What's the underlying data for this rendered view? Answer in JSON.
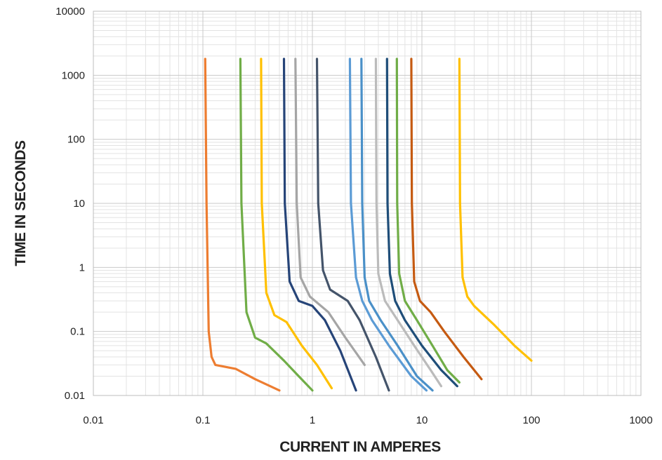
{
  "chart_data": {
    "type": "line",
    "title": "",
    "xlabel": "CURRENT IN AMPERES",
    "ylabel": "TIME IN SECONDS",
    "x_scale": "log",
    "y_scale": "log",
    "xlim": [
      0.01,
      1000
    ],
    "ylim": [
      0.01,
      10000
    ],
    "x_ticks": [
      0.01,
      0.1,
      1,
      10,
      100,
      1000
    ],
    "x_tick_labels": [
      "0.01",
      "0.1",
      "1",
      "10",
      "100",
      "1000"
    ],
    "y_ticks": [
      0.01,
      0.1,
      1,
      10,
      100,
      1000,
      10000
    ],
    "y_tick_labels": [
      "0.01",
      "0.1",
      "1",
      "10",
      "100",
      "1000",
      "10000"
    ],
    "grid": true,
    "legend": "none",
    "series": [
      {
        "color": "#ED7D31",
        "points": [
          [
            0.105,
            1800
          ],
          [
            0.108,
            10
          ],
          [
            0.113,
            0.1
          ],
          [
            0.12,
            0.04
          ],
          [
            0.13,
            0.03
          ],
          [
            0.2,
            0.026
          ],
          [
            0.3,
            0.018
          ],
          [
            0.5,
            0.012
          ]
        ]
      },
      {
        "color": "#70AD47",
        "points": [
          [
            0.22,
            1800
          ],
          [
            0.225,
            10
          ],
          [
            0.25,
            0.2
          ],
          [
            0.3,
            0.08
          ],
          [
            0.38,
            0.065
          ],
          [
            0.55,
            0.035
          ],
          [
            0.75,
            0.02
          ],
          [
            1.0,
            0.012
          ]
        ]
      },
      {
        "color": "#FFC000",
        "points": [
          [
            0.34,
            1800
          ],
          [
            0.345,
            10
          ],
          [
            0.38,
            0.4
          ],
          [
            0.45,
            0.18
          ],
          [
            0.58,
            0.14
          ],
          [
            0.8,
            0.06
          ],
          [
            1.1,
            0.03
          ],
          [
            1.5,
            0.013
          ]
        ]
      },
      {
        "color": "#264478",
        "points": [
          [
            0.55,
            1800
          ],
          [
            0.56,
            10
          ],
          [
            0.62,
            0.6
          ],
          [
            0.75,
            0.3
          ],
          [
            1.0,
            0.25
          ],
          [
            1.3,
            0.15
          ],
          [
            1.8,
            0.05
          ],
          [
            2.5,
            0.012
          ]
        ]
      },
      {
        "color": "#A5A5A5",
        "points": [
          [
            0.7,
            1800
          ],
          [
            0.72,
            10
          ],
          [
            0.78,
            0.7
          ],
          [
            0.95,
            0.35
          ],
          [
            1.4,
            0.2
          ],
          [
            2.0,
            0.08
          ],
          [
            3.0,
            0.03
          ]
        ]
      },
      {
        "color": "#44546A",
        "points": [
          [
            1.1,
            1800
          ],
          [
            1.13,
            10
          ],
          [
            1.25,
            0.9
          ],
          [
            1.45,
            0.45
          ],
          [
            2.1,
            0.3
          ],
          [
            2.7,
            0.15
          ],
          [
            3.8,
            0.04
          ],
          [
            5.0,
            0.012
          ]
        ]
      },
      {
        "color": "#5B9BD5",
        "points": [
          [
            2.2,
            1800
          ],
          [
            2.25,
            10
          ],
          [
            2.5,
            0.7
          ],
          [
            2.85,
            0.3
          ],
          [
            3.5,
            0.15
          ],
          [
            5.0,
            0.06
          ],
          [
            8.0,
            0.02
          ],
          [
            11.0,
            0.012
          ]
        ]
      },
      {
        "color": "#4A90C8",
        "points": [
          [
            2.8,
            1800
          ],
          [
            2.85,
            10
          ],
          [
            3.0,
            0.7
          ],
          [
            3.3,
            0.3
          ],
          [
            4.2,
            0.15
          ],
          [
            6.0,
            0.06
          ],
          [
            9.0,
            0.02
          ],
          [
            12.5,
            0.012
          ]
        ]
      },
      {
        "color": "#BBBBBB",
        "points": [
          [
            3.8,
            1800
          ],
          [
            3.85,
            10
          ],
          [
            4.0,
            0.8
          ],
          [
            4.6,
            0.3
          ],
          [
            6.0,
            0.15
          ],
          [
            8.5,
            0.06
          ],
          [
            12.0,
            0.025
          ],
          [
            15.0,
            0.014
          ]
        ]
      },
      {
        "color": "#1F4E79",
        "points": [
          [
            4.8,
            1800
          ],
          [
            4.85,
            10
          ],
          [
            5.1,
            0.8
          ],
          [
            5.7,
            0.3
          ],
          [
            7.0,
            0.15
          ],
          [
            10.0,
            0.06
          ],
          [
            15.0,
            0.025
          ],
          [
            21.0,
            0.014
          ]
        ]
      },
      {
        "color": "#70AD47",
        "points": [
          [
            5.9,
            1800
          ],
          [
            5.95,
            10
          ],
          [
            6.2,
            0.8
          ],
          [
            7.0,
            0.3
          ],
          [
            9.0,
            0.15
          ],
          [
            12.5,
            0.06
          ],
          [
            17.0,
            0.025
          ],
          [
            22.0,
            0.016
          ]
        ]
      },
      {
        "color": "#C55A11",
        "points": [
          [
            8.0,
            1800
          ],
          [
            8.1,
            10
          ],
          [
            8.5,
            0.6
          ],
          [
            9.6,
            0.3
          ],
          [
            12.0,
            0.2
          ],
          [
            16.0,
            0.1
          ],
          [
            24.0,
            0.04
          ],
          [
            35.0,
            0.018
          ]
        ]
      },
      {
        "color": "#FFC000",
        "points": [
          [
            22.0,
            1800
          ],
          [
            22.3,
            10
          ],
          [
            23.5,
            0.7
          ],
          [
            26.0,
            0.35
          ],
          [
            30.0,
            0.25
          ],
          [
            45.0,
            0.13
          ],
          [
            70.0,
            0.06
          ],
          [
            100.0,
            0.035
          ]
        ]
      }
    ]
  }
}
